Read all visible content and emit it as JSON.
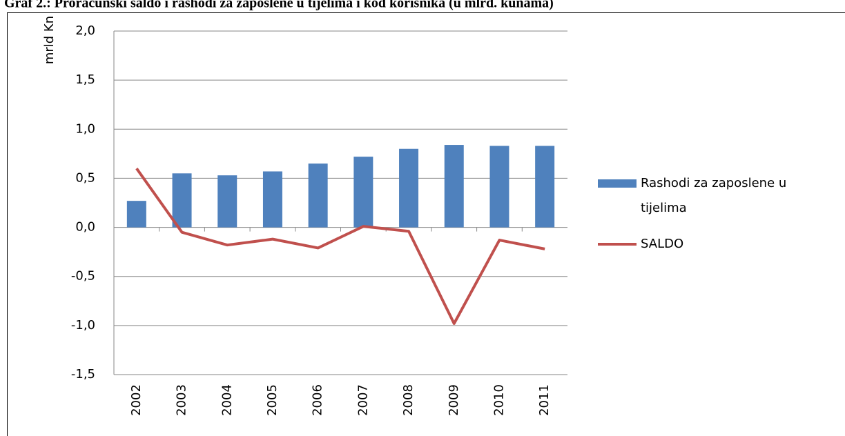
{
  "chart_data": {
    "type": "bar-line",
    "title": "Graf 2.: Proračunski saldo i rashodi za zaposlene u tijelima i kod korisnika (u mlrd. kunama)",
    "y_label": "mrld Kn",
    "categories": [
      "2002",
      "2003",
      "2004",
      "2005",
      "2006",
      "2007",
      "2008",
      "2009",
      "2010",
      "2011"
    ],
    "series": [
      {
        "name": "Rashodi za zaposlene u tijelima",
        "type": "bar",
        "color": "#4f81bd",
        "values": [
          0.27,
          0.55,
          0.53,
          0.57,
          0.65,
          0.72,
          0.8,
          0.84,
          0.83,
          0.83
        ]
      },
      {
        "name": "SALDO",
        "type": "line",
        "color": "#c0504d",
        "values": [
          0.6,
          -0.05,
          -0.18,
          -0.12,
          -0.21,
          0.01,
          -0.04,
          -0.98,
          -0.13,
          -0.22
        ]
      }
    ],
    "ylim": [
      -1.5,
      2.0
    ],
    "yticks": [
      {
        "value": -1.5,
        "label": "-1,5"
      },
      {
        "value": -1.0,
        "label": "-1,0"
      },
      {
        "value": -0.5,
        "label": "-0,5"
      },
      {
        "value": 0,
        "label": "0,0"
      },
      {
        "value": 0.5,
        "label": "0,5"
      },
      {
        "value": 1.0,
        "label": "1,0"
      },
      {
        "value": 1.5,
        "label": "1,5"
      },
      {
        "value": 2.0,
        "label": "2,0"
      }
    ],
    "grid": true,
    "legend": "right"
  }
}
